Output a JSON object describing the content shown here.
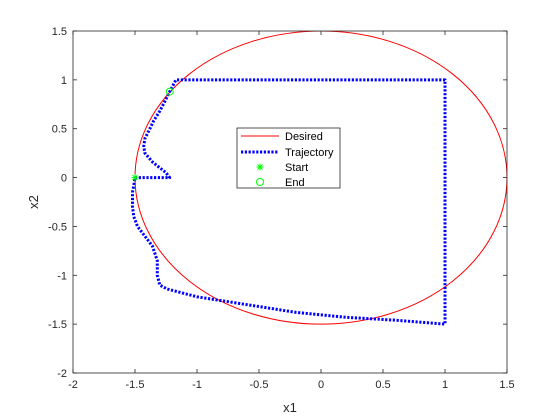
{
  "chart_data": {
    "type": "line",
    "title": "",
    "xlabel": "x1",
    "ylabel": "x2",
    "xlim": [
      -2,
      1.5
    ],
    "ylim": [
      -2,
      1.5
    ],
    "xticks": [
      -2,
      -1.5,
      -1,
      -0.5,
      0,
      0.5,
      1,
      1.5
    ],
    "yticks": [
      -2,
      -1.5,
      -1,
      -0.5,
      0,
      0.5,
      1,
      1.5
    ],
    "xtick_labels": [
      "-2",
      "-1.5",
      "-1",
      "-0.5",
      "0",
      "0.5",
      "1",
      "1.5"
    ],
    "ytick_labels": [
      "-2",
      "-1.5",
      "-1",
      "-0.5",
      "0",
      "0.5",
      "1",
      "1.5"
    ],
    "grid": false,
    "legend_position": "center",
    "series": [
      {
        "name": "Desired",
        "kind": "circle",
        "center": [
          0,
          0
        ],
        "radius": 1.5,
        "color": "#ff0000",
        "style": "solid"
      },
      {
        "name": "Trajectory",
        "color": "#0000ff",
        "style": "dotted",
        "points": [
          [
            -1.5,
            0
          ],
          [
            -1.4,
            0
          ],
          [
            -1.3,
            0
          ],
          [
            -1.22,
            0
          ],
          [
            -1.25,
            0.05
          ],
          [
            -1.3,
            0.1
          ],
          [
            -1.36,
            0.16
          ],
          [
            -1.42,
            0.25
          ],
          [
            -1.43,
            0.32
          ],
          [
            -1.42,
            0.4
          ],
          [
            -1.38,
            0.5
          ],
          [
            -1.35,
            0.58
          ],
          [
            -1.3,
            0.68
          ],
          [
            -1.26,
            0.78
          ],
          [
            -1.22,
            0.88
          ],
          [
            -1.17,
            1.0
          ],
          [
            -0.8,
            1.0
          ],
          [
            0,
            1.0
          ],
          [
            0.5,
            1.0
          ],
          [
            1.0,
            1.0
          ],
          [
            1.0,
            0.5
          ],
          [
            1.0,
            0
          ],
          [
            1.0,
            -0.5
          ],
          [
            1.0,
            -1.0
          ],
          [
            1.0,
            -1.5
          ],
          [
            0.6,
            -1.46
          ],
          [
            0.2,
            -1.43
          ],
          [
            -0.2,
            -1.38
          ],
          [
            -0.6,
            -1.3
          ],
          [
            -1.0,
            -1.22
          ],
          [
            -1.24,
            -1.14
          ],
          [
            -1.3,
            -1.1
          ],
          [
            -1.32,
            -1.0
          ],
          [
            -1.32,
            -0.85
          ],
          [
            -1.36,
            -0.7
          ],
          [
            -1.42,
            -0.6
          ],
          [
            -1.48,
            -0.5
          ],
          [
            -1.51,
            -0.4
          ],
          [
            -1.52,
            -0.3
          ],
          [
            -1.52,
            -0.15
          ],
          [
            -1.51,
            -0.08
          ],
          [
            -1.5,
            0
          ]
        ]
      },
      {
        "name": "Start",
        "kind": "marker",
        "marker": "asterisk",
        "color": "#00ff00",
        "point": [
          -1.5,
          0
        ]
      },
      {
        "name": "End",
        "kind": "marker",
        "marker": "circle",
        "color": "#00ff00",
        "point": [
          -1.22,
          0.88
        ]
      }
    ]
  }
}
